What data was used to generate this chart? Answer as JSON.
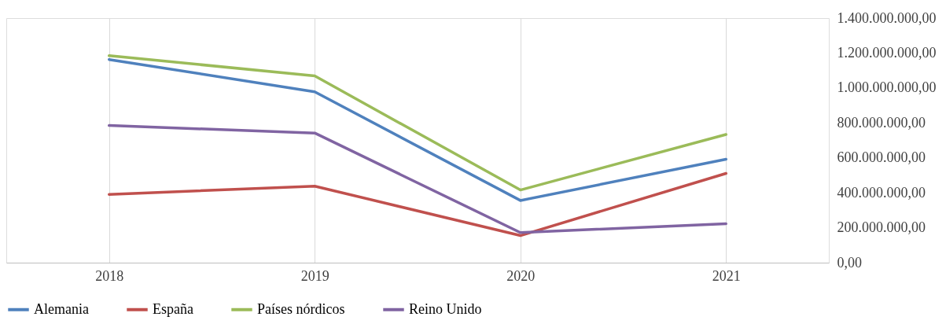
{
  "chart_data": {
    "type": "line",
    "categories": [
      "2018",
      "2019",
      "2020",
      "2021"
    ],
    "series": [
      {
        "name": "Alemania",
        "color": "#4f81bd",
        "values": [
          1163000000,
          978000000,
          356000000,
          592000000
        ]
      },
      {
        "name": "España",
        "color": "#c0504d",
        "values": [
          391000000,
          438000000,
          155000000,
          511000000
        ]
      },
      {
        "name": "Países nórdicos",
        "color": "#9bbb59",
        "values": [
          1185000000,
          1069000000,
          416000000,
          734000000
        ]
      },
      {
        "name": "Reino Unido",
        "color": "#8064a2",
        "values": [
          785000000,
          742000000,
          172000000,
          223000000
        ]
      }
    ],
    "ylim": [
      0,
      1400000000
    ],
    "yticks": [
      {
        "value": 0,
        "label": "0,00"
      },
      {
        "value": 200000000,
        "label": "200.000.000,00"
      },
      {
        "value": 400000000,
        "label": "400.000.000,00"
      },
      {
        "value": 600000000,
        "label": "600.000.000,00"
      },
      {
        "value": 800000000,
        "label": "800.000.000,00"
      },
      {
        "value": 1000000000,
        "label": "1.000.000.000,00"
      },
      {
        "value": 1200000000,
        "label": "1.200.000.000,00"
      },
      {
        "value": 1400000000,
        "label": "1.400.000.000,00"
      }
    ],
    "grid": "x",
    "legend": "bottom",
    "marker": "none",
    "line_style": "solid"
  }
}
